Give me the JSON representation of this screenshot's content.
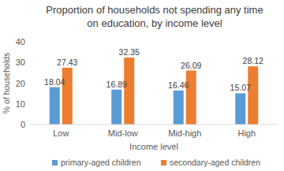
{
  "chart_data": {
    "type": "bar",
    "title": "Proportion of households not spending any time on education, by income level",
    "x_label": "Income level",
    "y_label": "% of households",
    "categories": [
      "Low",
      "Mid-low",
      "Mid-high",
      "High"
    ],
    "series": [
      {
        "name": "primary-aged children",
        "color": "#5b9bd5",
        "values": [
          18.04,
          16.89,
          16.46,
          15.07
        ]
      },
      {
        "name": "secondary-aged children",
        "color": "#ed7d31",
        "values": [
          27.43,
          32.35,
          26.09,
          28.12
        ]
      }
    ],
    "ylim": [
      0,
      40
    ],
    "yticks": [
      0,
      10,
      20,
      30,
      40
    ],
    "grid": false,
    "data_labels": true,
    "legend": "bottom"
  }
}
